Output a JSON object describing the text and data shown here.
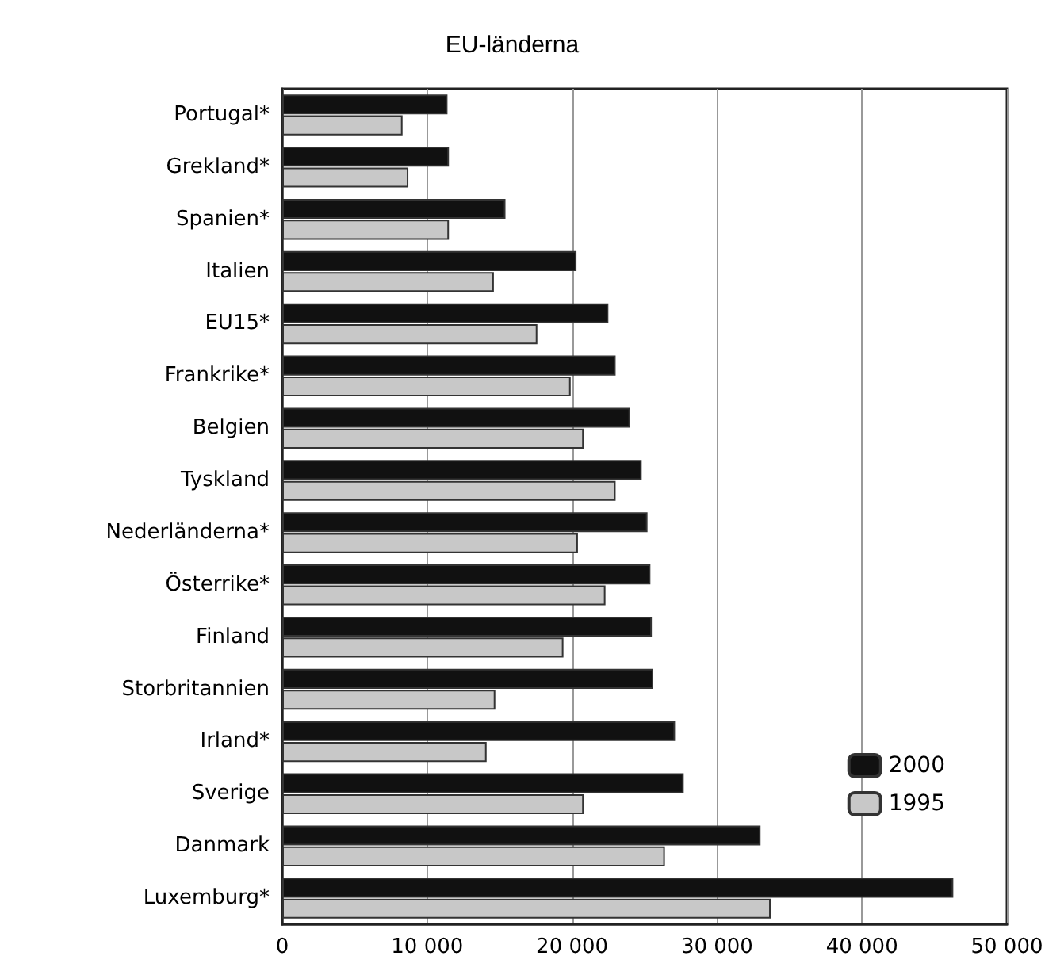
{
  "chart_data": {
    "type": "bar",
    "orientation": "horizontal",
    "title": "EU-länderna",
    "categories": [
      "Portugal*",
      "Grekland*",
      "Spanien*",
      "Italien",
      "EU15*",
      "Frankrike*",
      "Belgien",
      "Tyskland",
      "Nederländerna*",
      "Österrike*",
      "Finland",
      "Storbritannien",
      "Irland*",
      "Sverige",
      "Danmark",
      "Luxemburg*"
    ],
    "series": [
      {
        "name": "2000",
        "color": "#111111",
        "values": [
          11400,
          11500,
          15400,
          20300,
          22500,
          23000,
          24000,
          24800,
          25200,
          25400,
          25500,
          25600,
          27100,
          27700,
          33000,
          46300
        ]
      },
      {
        "name": "1995",
        "color": "#c8c8c8",
        "values": [
          8300,
          8700,
          11500,
          14600,
          17600,
          19900,
          20800,
          23000,
          20400,
          22300,
          19400,
          14700,
          14100,
          20800,
          26400,
          33700
        ]
      }
    ],
    "xlim": [
      0,
      50000
    ],
    "xticks": [
      0,
      {
        "value": 10000,
        "label": "10 000"
      },
      {
        "value": 20000,
        "label": "20 000"
      },
      {
        "value": 30000,
        "label": "30 000"
      },
      {
        "value": 40000,
        "label": "40 000"
      },
      {
        "value": 50000,
        "label": "50 000"
      }
    ],
    "grid": "x",
    "legend": "bottom right"
  }
}
